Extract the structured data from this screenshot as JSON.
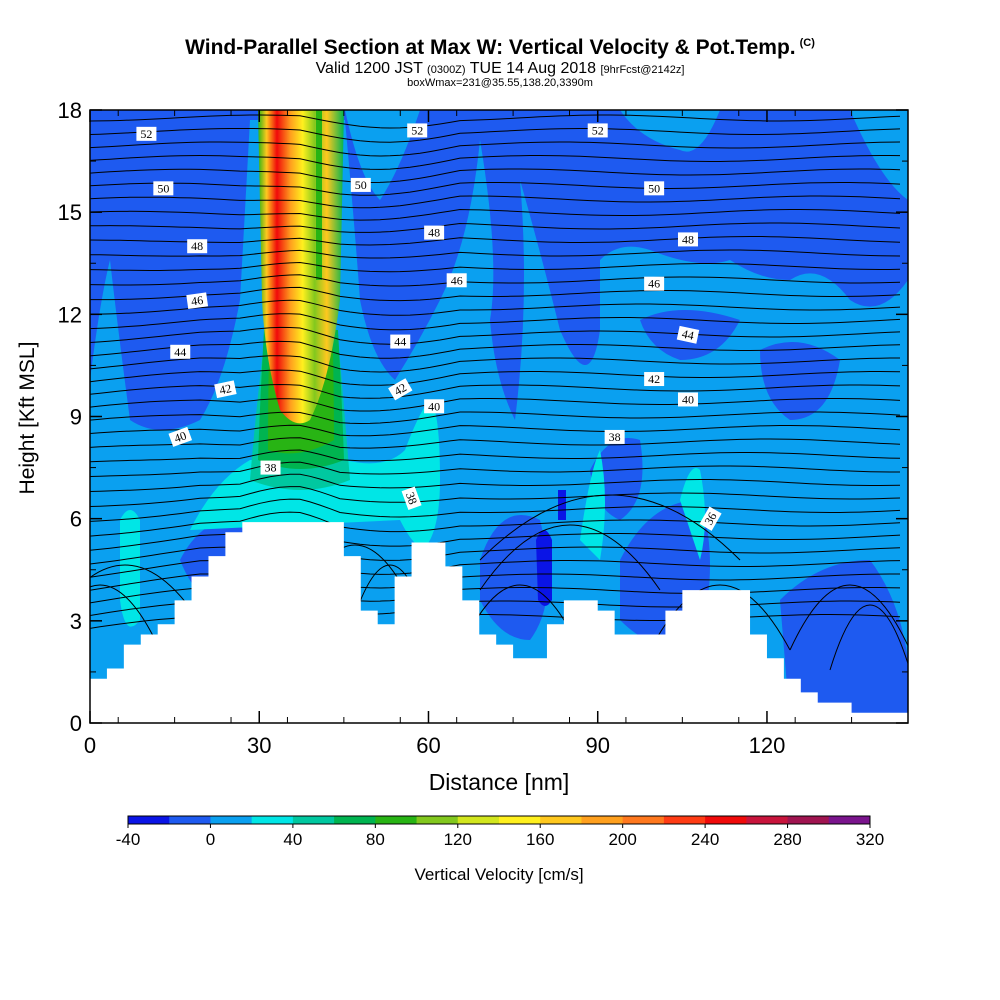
{
  "chart_data": {
    "type": "heatmap",
    "title": "Wind-Parallel Section at Max W: Vertical Velocity & Pot.Temp.",
    "title_mark": "(C)",
    "subtitle_prefix": "Valid 1200 JST",
    "subtitle_utc": "(0300Z)",
    "subtitle_date": "TUE 14 Aug 2018",
    "subtitle_fcst": "[9hrFcst@2142z]",
    "subtitle2": "boxWmax=231@35.55,138.20,3390m",
    "xlabel": "Distance [nm]",
    "ylabel": "Height [Kft MSL]",
    "xlim": [
      0,
      145
    ],
    "ylim": [
      0,
      18
    ],
    "x_ticks": [
      "0",
      "30",
      "60",
      "90",
      "120"
    ],
    "y_ticks": [
      "0",
      "3",
      "6",
      "9",
      "12",
      "15",
      "18"
    ],
    "colorbar": {
      "label": "Vertical Velocity [cm/s]",
      "tick_labels": [
        "-40",
        "0",
        "40",
        "80",
        "120",
        "160",
        "200",
        "240",
        "280",
        "320"
      ],
      "colors": [
        "#0a14e6",
        "#1e5af0",
        "#0aa0f0",
        "#00e6e6",
        "#00c8a0",
        "#00b450",
        "#28b414",
        "#82c81e",
        "#d2e61e",
        "#fff01e",
        "#ffc81e",
        "#ffa01e",
        "#ff781e",
        "#ff3c14",
        "#f00a0a",
        "#c8143c",
        "#a01450",
        "#7a148c"
      ]
    },
    "vertical_velocity_core": {
      "x_range_nm": [
        30,
        45
      ],
      "max_cm_s": 231
    },
    "terrain_kft": {
      "x_nm": [
        0,
        3,
        6,
        9,
        12,
        15,
        18,
        21,
        24,
        27,
        30,
        33,
        36,
        39,
        42,
        45,
        48,
        51,
        54,
        57,
        60,
        63,
        66,
        69,
        72,
        75,
        78,
        81,
        84,
        87,
        90,
        93,
        96,
        99,
        102,
        105,
        108,
        111,
        114,
        117,
        120,
        123,
        126,
        129,
        132,
        135,
        138,
        141,
        145
      ],
      "height": [
        1.3,
        1.6,
        2.3,
        2.6,
        2.9,
        3.6,
        4.3,
        4.9,
        5.6,
        5.9,
        5.9,
        5.9,
        5.9,
        5.9,
        5.9,
        4.9,
        3.3,
        2.9,
        4.3,
        5.3,
        5.3,
        4.6,
        3.6,
        2.6,
        2.3,
        1.9,
        1.9,
        2.9,
        3.6,
        3.6,
        3.3,
        2.6,
        2.6,
        2.6,
        3.3,
        3.9,
        3.9,
        3.9,
        3.9,
        2.6,
        1.9,
        1.3,
        0.9,
        0.6,
        0.6,
        0.3,
        0.3,
        0.3,
        0.3
      ]
    },
    "theta_contour_labels": [
      {
        "value": "52",
        "x": 10,
        "y": 17.3,
        "angle": 0
      },
      {
        "value": "52",
        "x": 58,
        "y": 17.4,
        "angle": 0
      },
      {
        "value": "52",
        "x": 90,
        "y": 17.4,
        "angle": 0
      },
      {
        "value": "50",
        "x": 13,
        "y": 15.7,
        "angle": 0
      },
      {
        "value": "50",
        "x": 48,
        "y": 15.8,
        "angle": 0
      },
      {
        "value": "50",
        "x": 100,
        "y": 15.7,
        "angle": 0
      },
      {
        "value": "48",
        "x": 19,
        "y": 14.0,
        "angle": 0
      },
      {
        "value": "48",
        "x": 61,
        "y": 14.4,
        "angle": 0
      },
      {
        "value": "48",
        "x": 106,
        "y": 14.2,
        "angle": 0
      },
      {
        "value": "46",
        "x": 19,
        "y": 12.4,
        "angle": -8
      },
      {
        "value": "46",
        "x": 65,
        "y": 13.0,
        "angle": 0
      },
      {
        "value": "46",
        "x": 100,
        "y": 12.9,
        "angle": 0
      },
      {
        "value": "44",
        "x": 16,
        "y": 10.9,
        "angle": 0
      },
      {
        "value": "44",
        "x": 55,
        "y": 11.2,
        "angle": 0
      },
      {
        "value": "44",
        "x": 106,
        "y": 11.4,
        "angle": 12
      },
      {
        "value": "42",
        "x": 24,
        "y": 9.8,
        "angle": -12
      },
      {
        "value": "42",
        "x": 55,
        "y": 9.8,
        "angle": -30
      },
      {
        "value": "42",
        "x": 100,
        "y": 10.1,
        "angle": 0
      },
      {
        "value": "40",
        "x": 16,
        "y": 8.4,
        "angle": -20
      },
      {
        "value": "40",
        "x": 61,
        "y": 9.3,
        "angle": 0
      },
      {
        "value": "40",
        "x": 106,
        "y": 9.5,
        "angle": 0
      },
      {
        "value": "38",
        "x": 32,
        "y": 7.5,
        "angle": 0
      },
      {
        "value": "38",
        "x": 57,
        "y": 6.6,
        "angle": 70
      },
      {
        "value": "38",
        "x": 93,
        "y": 8.4,
        "angle": 0
      },
      {
        "value": "36",
        "x": 110,
        "y": 6.0,
        "angle": -60
      }
    ]
  }
}
